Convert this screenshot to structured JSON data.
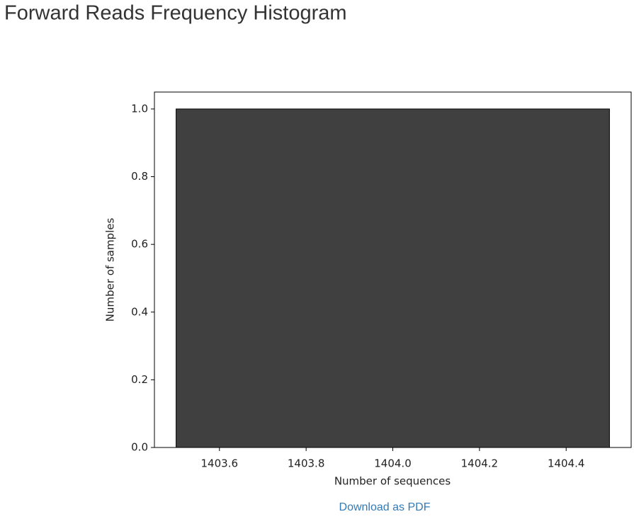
{
  "page_title": "Forward Reads Frequency Histogram",
  "link": "Download as PDF",
  "chart_data": {
    "type": "histogram",
    "bins": [
      1403.5,
      1404.5
    ],
    "counts": [
      1
    ],
    "color": "#404040",
    "xlabel": "Number of sequences",
    "ylabel": "Number of samples",
    "xlim": [
      1403.45,
      1404.55
    ],
    "xticks": [
      1403.6,
      1403.8,
      {
        "value": 1404.0,
        "label": "1404.0"
      },
      1404.2,
      1404.4
    ],
    "ylim": [
      0,
      1.05
    ],
    "yticks": [
      {
        "value": 0,
        "label": "0.0"
      },
      0.2,
      0.4,
      0.6,
      0.8,
      {
        "value": 1,
        "label": "1.0"
      }
    ]
  }
}
